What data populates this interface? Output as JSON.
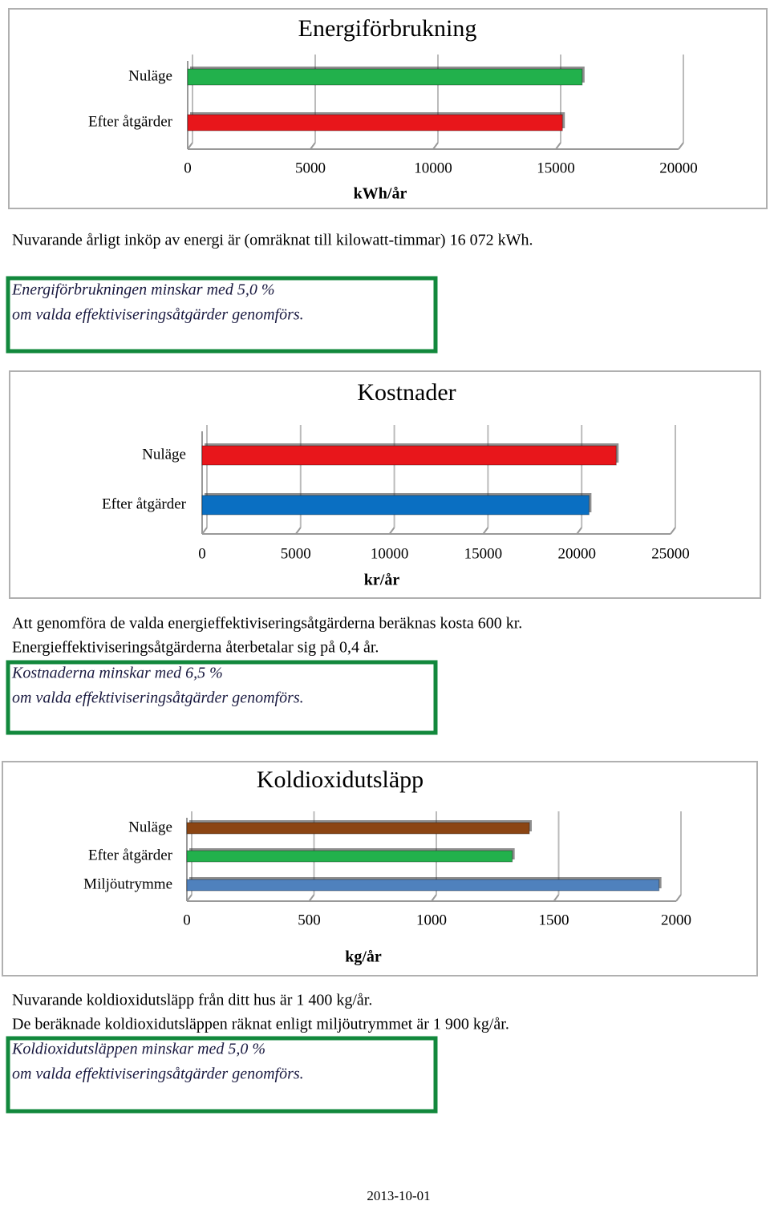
{
  "chart_data": [
    {
      "type": "bar",
      "orientation": "horizontal",
      "title": "Energiförbrukning",
      "categories": [
        "Nuläge",
        "Efter åtgärder"
      ],
      "values": [
        16072,
        15268
      ],
      "colors": [
        "#22b14c",
        "#e8161b"
      ],
      "x_label": "kWh/år",
      "xlim": [
        0,
        20000
      ],
      "xticks": [
        0,
        5000,
        10000,
        15000,
        20000
      ],
      "grid": true
    },
    {
      "type": "bar",
      "orientation": "horizontal",
      "title": "Kostnader",
      "categories": [
        "Nuläge",
        "Efter åtgärder"
      ],
      "values": [
        22100,
        20650
      ],
      "colors": [
        "#e8161b",
        "#0a6fc2"
      ],
      "x_label": "kr/år",
      "xlim": [
        0,
        25000
      ],
      "xticks": [
        0,
        5000,
        10000,
        15000,
        20000,
        25000
      ],
      "grid": true
    },
    {
      "type": "bar",
      "orientation": "horizontal",
      "title": "Koldioxidutsläpp",
      "categories": [
        "Nuläge",
        "Efter åtgärder",
        "Miljöutrymme"
      ],
      "values": [
        1400,
        1330,
        1930
      ],
      "colors": [
        "#8b4513",
        "#22b14c",
        "#4f81bd"
      ],
      "x_label": "kg/år",
      "xlim": [
        0,
        2000
      ],
      "xticks": [
        0,
        500,
        1000,
        1500,
        2000
      ],
      "grid": true
    }
  ],
  "texts": {
    "energy_note": "Nuvarande årligt inköp av energi är (omräknat till kilowatt-timmar) 16 072 kWh.",
    "energy_result": [
      "Energiförbrukningen minskar med 5,0 %",
      "om valda effektiviseringsåtgärder genomförs."
    ],
    "cost_notes": [
      "Att genomföra de valda energieffektiviseringsåtgärderna beräknas kosta 600 kr.",
      "Energieffektiviseringsåtgärderna återbetalar sig på 0,4 år."
    ],
    "cost_result": [
      "Kostnaderna minskar med 6,5 %",
      "om valda effektiviseringsåtgärder genomförs."
    ],
    "co2_notes": [
      "Nuvarande koldioxidutsläpp från ditt hus är 1 400 kg/år.",
      "De beräknade koldioxidutsläppen räknat enligt miljöutrymmet är 1 900 kg/år."
    ],
    "co2_result": [
      "Koldioxidutsläppen minskar med 5,0 %",
      "om valda effektiviseringsåtgärder genomförs."
    ],
    "date": "2013-10-01"
  }
}
